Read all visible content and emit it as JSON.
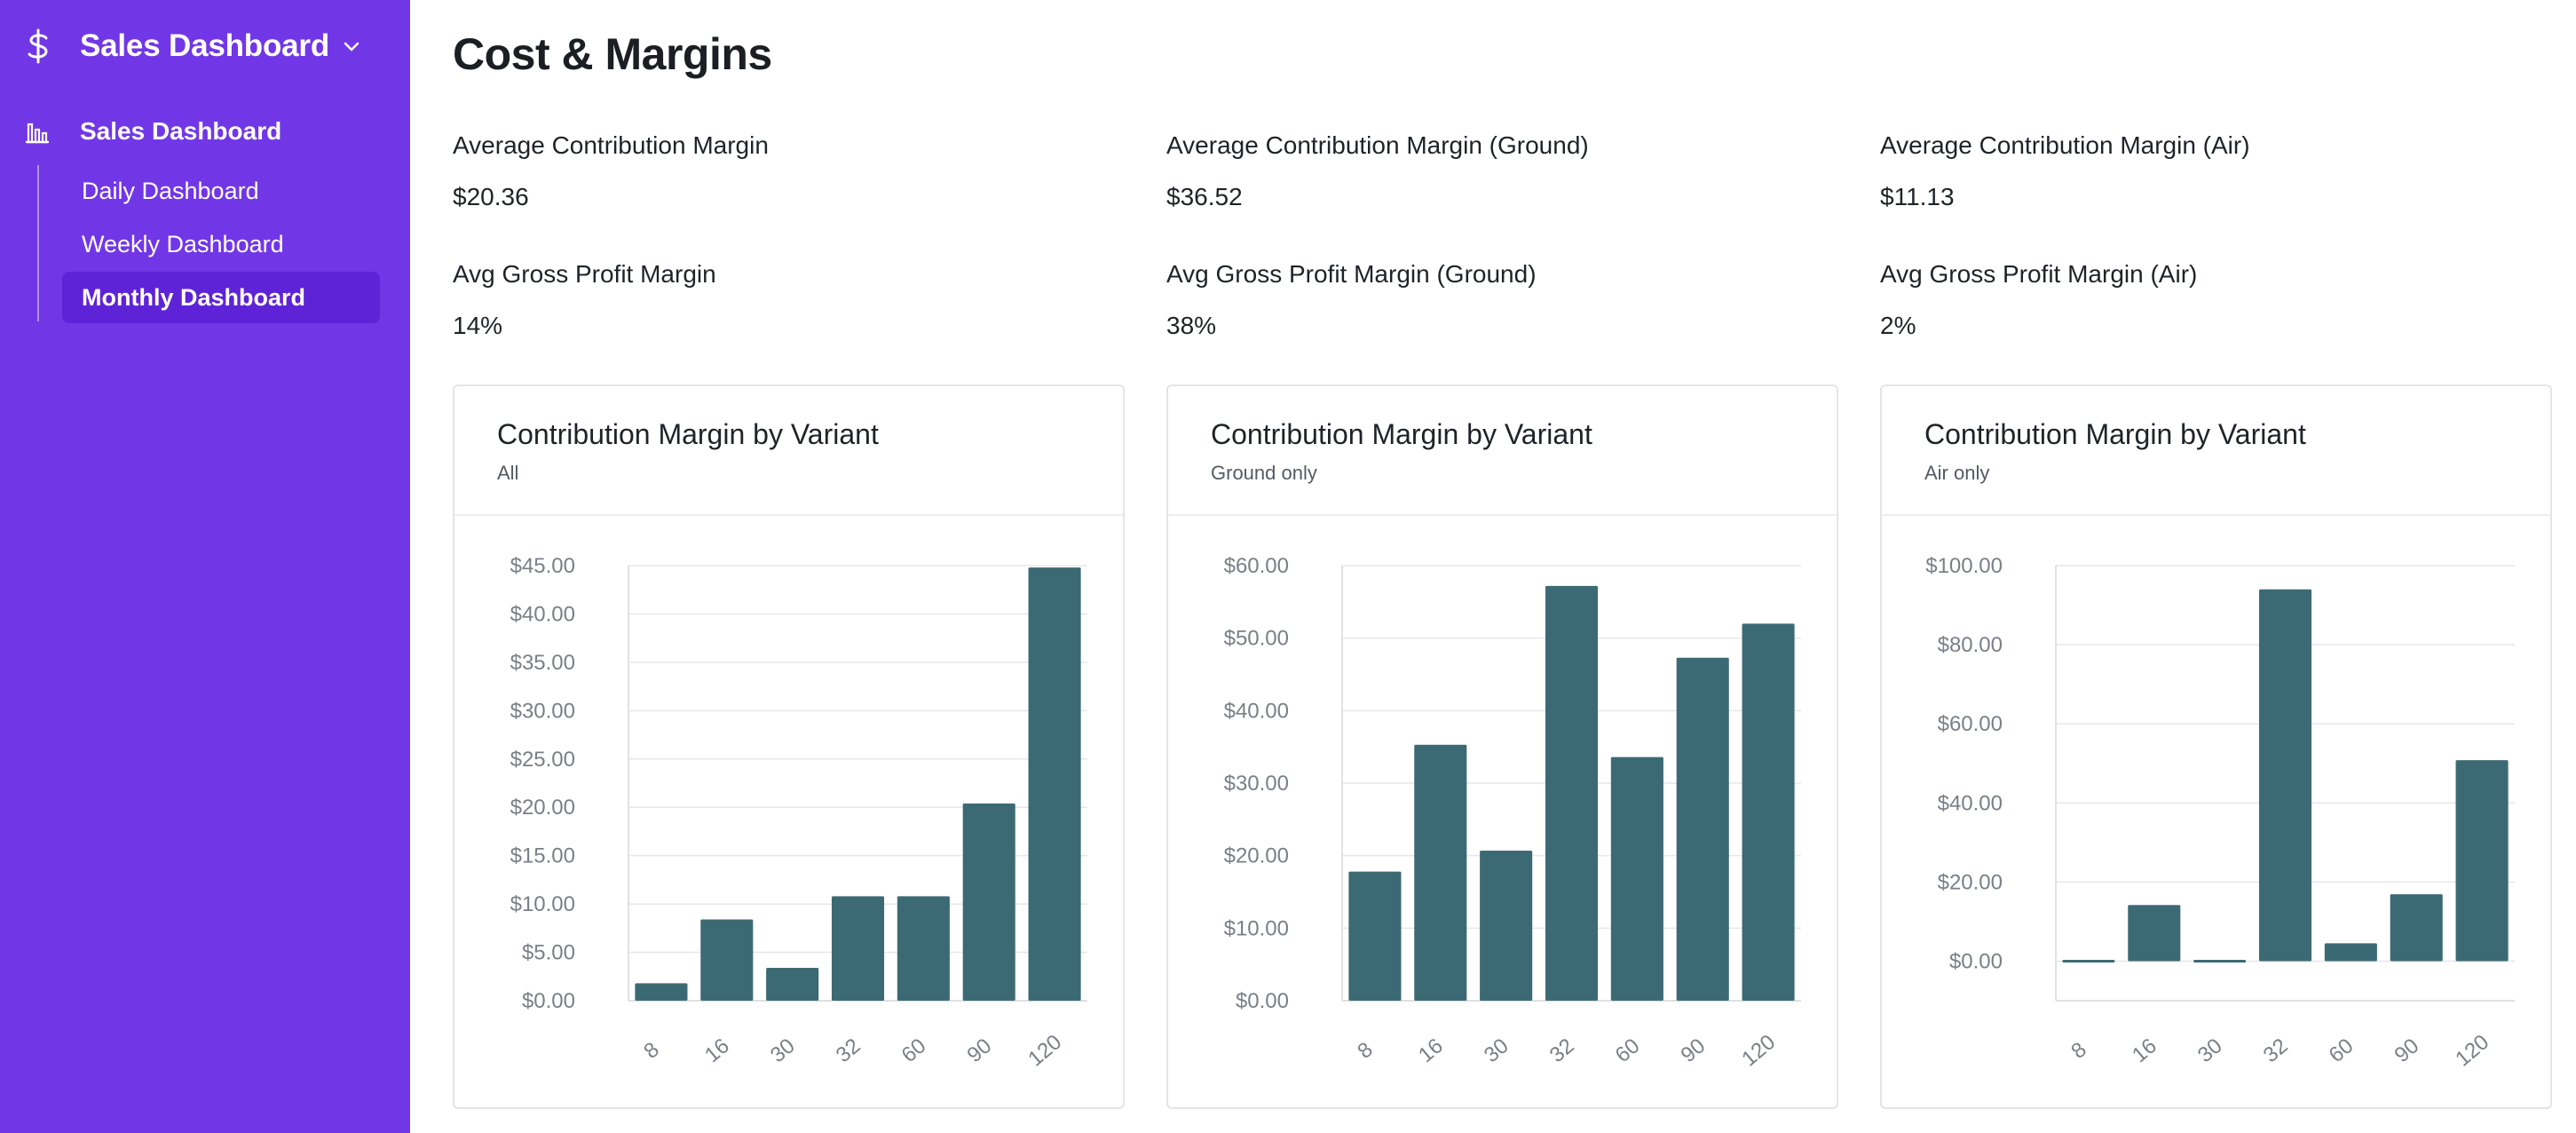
{
  "sidebar": {
    "brand_title": "Sales Dashboard",
    "section_label": "Sales Dashboard",
    "items": [
      {
        "label": "Daily Dashboard",
        "active": false
      },
      {
        "label": "Weekly Dashboard",
        "active": false
      },
      {
        "label": "Monthly Dashboard",
        "active": true
      }
    ],
    "background": "#7137e6",
    "active_background": "#5e23d6"
  },
  "page": {
    "title": "Cost & Margins"
  },
  "metrics": [
    {
      "label": "Average Contribution Margin",
      "value": "$20.36"
    },
    {
      "label": "Average Contribution Margin (Ground)",
      "value": "$36.52"
    },
    {
      "label": "Average Contribution Margin (Air)",
      "value": "$11.13"
    },
    {
      "label": "Avg Gross Profit Margin",
      "value": "14%"
    },
    {
      "label": "Avg Gross Profit Margin (Ground)",
      "value": "38%"
    },
    {
      "label": "Avg Gross Profit Margin (Air)",
      "value": "2%"
    }
  ],
  "chart_data": [
    {
      "type": "bar",
      "title": "Contribution Margin by Variant",
      "subtitle": "All",
      "categories": [
        "8",
        "16",
        "30",
        "32",
        "60",
        "90",
        "120"
      ],
      "values": [
        1.8,
        8.4,
        3.4,
        10.8,
        10.8,
        20.4,
        44.8
      ],
      "ylim": [
        0,
        45
      ],
      "yticks": [
        0,
        5,
        10,
        15,
        20,
        25,
        30,
        35,
        40,
        45
      ],
      "ytick_labels": [
        "$0.00",
        "$5.00",
        "$10.00",
        "$15.00",
        "$20.00",
        "$25.00",
        "$30.00",
        "$35.00",
        "$40.00",
        "$45.00"
      ],
      "grid": true,
      "color": "#3c6a74"
    },
    {
      "type": "bar",
      "title": "Contribution Margin by Variant",
      "subtitle": "Ground only",
      "categories": [
        "8",
        "16",
        "30",
        "32",
        "60",
        "90",
        "120"
      ],
      "values": [
        17.8,
        35.3,
        20.7,
        57.2,
        33.6,
        47.3,
        52.0
      ],
      "ylim": [
        0,
        60
      ],
      "yticks": [
        0,
        10,
        20,
        30,
        40,
        50,
        60
      ],
      "ytick_labels": [
        "$0.00",
        "$10.00",
        "$20.00",
        "$30.00",
        "$40.00",
        "$50.00",
        "$60.00"
      ],
      "grid": true,
      "color": "#3c6a74"
    },
    {
      "type": "bar",
      "title": "Contribution Margin by Variant",
      "subtitle": "Air only",
      "categories": [
        "8",
        "16",
        "30",
        "32",
        "60",
        "90",
        "120"
      ],
      "values": [
        -0.5,
        14.2,
        -0.2,
        94.0,
        4.5,
        16.9,
        50.8
      ],
      "ylim": [
        -10,
        100
      ],
      "yticks": [
        0,
        20,
        40,
        60,
        80,
        100
      ],
      "ytick_labels": [
        "$0.00",
        "$20.00",
        "$40.00",
        "$60.00",
        "$80.00",
        "$100.00"
      ],
      "grid": true,
      "color": "#3c6a74"
    }
  ]
}
